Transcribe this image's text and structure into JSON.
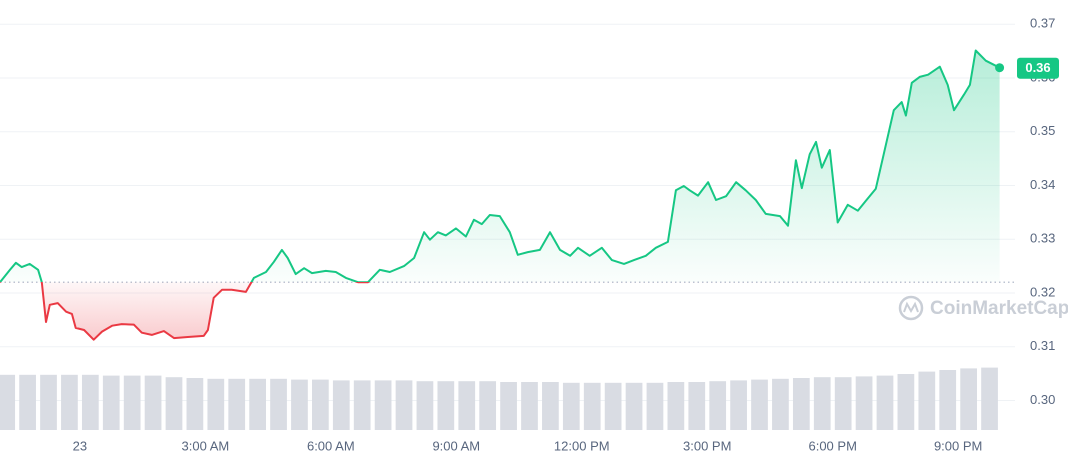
{
  "chart_data": {
    "type": "line",
    "watermark": "CoinMarketCap",
    "x": [
      -1.91,
      -1.67,
      -1.53,
      -1.39,
      -1.2,
      -1.0,
      -0.91,
      -0.81,
      -0.72,
      -0.53,
      -0.33,
      -0.19,
      -0.1,
      0.1,
      0.33,
      0.53,
      0.77,
      1.0,
      1.29,
      1.48,
      1.72,
      2.01,
      2.25,
      2.58,
      2.96,
      3.06,
      3.2,
      3.4,
      3.63,
      3.97,
      4.16,
      4.45,
      4.64,
      4.83,
      4.97,
      5.16,
      5.36,
      5.55,
      5.88,
      6.12,
      6.36,
      6.65,
      6.89,
      7.17,
      7.41,
      7.75,
      7.99,
      8.23,
      8.37,
      8.56,
      8.75,
      8.99,
      9.23,
      9.42,
      9.61,
      9.8,
      10.04,
      10.28,
      10.47,
      10.71,
      11.0,
      11.24,
      11.48,
      11.72,
      11.91,
      12.19,
      12.48,
      12.72,
      13.01,
      13.25,
      13.53,
      13.77,
      14.06,
      14.25,
      14.44,
      14.58,
      14.78,
      15.02,
      15.21,
      15.45,
      15.69,
      15.92,
      16.16,
      16.4,
      16.74,
      16.93,
      17.12,
      17.26,
      17.45,
      17.6,
      17.74,
      17.93,
      18.12,
      18.36,
      18.6,
      18.79,
      19.03,
      19.22,
      19.46,
      19.65,
      19.75,
      19.89,
      20.08,
      20.28,
      20.56,
      20.75,
      20.9,
      21.14,
      21.28,
      21.42,
      21.66,
      21.99
    ],
    "series": [
      {
        "values": [
          0.322,
          0.3243,
          0.3256,
          0.3248,
          0.3254,
          0.3243,
          0.322,
          0.3146,
          0.3178,
          0.3181,
          0.3165,
          0.3161,
          0.3135,
          0.3131,
          0.3113,
          0.3128,
          0.3139,
          0.3142,
          0.3141,
          0.3126,
          0.3122,
          0.3129,
          0.3116,
          0.3118,
          0.312,
          0.3131,
          0.3191,
          0.3206,
          0.3206,
          0.3202,
          0.3228,
          0.3239,
          0.3258,
          0.328,
          0.3265,
          0.3235,
          0.3246,
          0.3237,
          0.3241,
          0.3239,
          0.3228,
          0.322,
          0.322,
          0.3243,
          0.3239,
          0.325,
          0.3265,
          0.3313,
          0.3299,
          0.3313,
          0.3307,
          0.332,
          0.3305,
          0.3336,
          0.3328,
          0.3345,
          0.3343,
          0.3313,
          0.3271,
          0.3276,
          0.328,
          0.3313,
          0.328,
          0.3269,
          0.3284,
          0.3269,
          0.3284,
          0.3261,
          0.3254,
          0.3261,
          0.3269,
          0.3284,
          0.3295,
          0.3391,
          0.3399,
          0.3391,
          0.3381,
          0.3406,
          0.3373,
          0.338,
          0.3406,
          0.3391,
          0.3373,
          0.3347,
          0.3343,
          0.3325,
          0.3447,
          0.3395,
          0.3458,
          0.3481,
          0.3433,
          0.3466,
          0.3331,
          0.3364,
          0.3353,
          0.3371,
          0.3394,
          0.3458,
          0.354,
          0.3555,
          0.353,
          0.3591,
          0.3602,
          0.3606,
          0.3621,
          0.3587,
          0.354,
          0.3569,
          0.3587,
          0.3651,
          0.3632,
          0.3619
        ]
      }
    ],
    "up_color": "#16c784",
    "down_color": "#ea3943",
    "baseline": 0.322,
    "current_price": {
      "value": 0.3619,
      "label": "0.36"
    },
    "xlim": [
      -1.91,
      22
    ],
    "xticks": [
      {
        "value": 0,
        "label": "23"
      },
      {
        "value": 3,
        "label": "3:00 AM"
      },
      {
        "value": 6,
        "label": "6:00 AM"
      },
      {
        "value": 9,
        "label": "9:00 AM"
      },
      {
        "value": 12,
        "label": "12:00 PM"
      },
      {
        "value": 15,
        "label": "3:00 PM"
      },
      {
        "value": 18,
        "label": "6:00 PM"
      },
      {
        "value": 21,
        "label": "9:00 PM"
      }
    ],
    "ylim": [
      0.2945,
      0.3745
    ],
    "yticks": [
      {
        "value": 0.3,
        "label": "0.30"
      },
      0.31,
      0.32,
      0.33,
      0.34,
      0.35,
      0.36,
      0.37
    ],
    "grid": true,
    "volume": {
      "color": "#d9dce3",
      "ylim": [
        0,
        100
      ],
      "x": [
        -1.75,
        -1.25,
        -0.75,
        -0.25,
        0.25,
        0.75,
        1.25,
        1.75,
        2.25,
        2.75,
        3.25,
        3.75,
        4.25,
        4.75,
        5.25,
        5.75,
        6.25,
        6.75,
        7.25,
        7.75,
        8.25,
        8.75,
        9.25,
        9.75,
        10.25,
        10.75,
        11.25,
        11.75,
        12.25,
        12.75,
        13.25,
        13.75,
        14.25,
        14.75,
        15.25,
        15.75,
        16.25,
        16.75,
        17.25,
        17.75,
        18.25,
        18.75,
        19.25,
        19.75,
        20.25,
        20.75,
        21.25,
        21.75
      ],
      "values": [
        69,
        69,
        69,
        69,
        69,
        68,
        68,
        68,
        66,
        65,
        64,
        64,
        64,
        64,
        63,
        63,
        62,
        62,
        62,
        62,
        61,
        61,
        61,
        61,
        60,
        60,
        60,
        59,
        59,
        59,
        59,
        59,
        60,
        60,
        61,
        62,
        63,
        64,
        65,
        66,
        66,
        67,
        68,
        70,
        73,
        75,
        77,
        78
      ]
    }
  }
}
